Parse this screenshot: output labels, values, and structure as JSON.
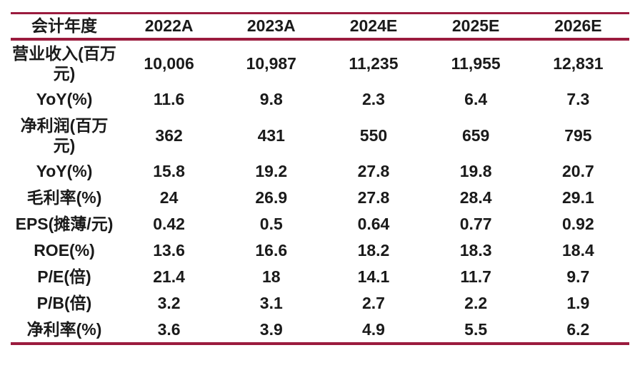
{
  "theme": {
    "accent_color": "#9b1b3e",
    "text_color": "#1a1a1a",
    "background_color": "#ffffff"
  },
  "chart_data": {
    "type": "table",
    "columns": [
      "会计年度",
      "2022A",
      "2023A",
      "2024E",
      "2025E",
      "2026E"
    ],
    "rows": [
      {
        "label": "营业收入(百万元)",
        "values": [
          "10,006",
          "10,987",
          "11,235",
          "11,955",
          "12,831"
        ]
      },
      {
        "label": "YoY(%)",
        "values": [
          "11.6",
          "9.8",
          "2.3",
          "6.4",
          "7.3"
        ]
      },
      {
        "label": "净利润(百万元)",
        "values": [
          "362",
          "431",
          "550",
          "659",
          "795"
        ]
      },
      {
        "label": "YoY(%)",
        "values": [
          "15.8",
          "19.2",
          "27.8",
          "19.8",
          "20.7"
        ]
      },
      {
        "label": "毛利率(%)",
        "values": [
          "24",
          "26.9",
          "27.8",
          "28.4",
          "29.1"
        ]
      },
      {
        "label": "EPS(摊薄/元)",
        "values": [
          "0.42",
          "0.5",
          "0.64",
          "0.77",
          "0.92"
        ]
      },
      {
        "label": "ROE(%)",
        "values": [
          "13.6",
          "16.6",
          "18.2",
          "18.3",
          "18.4"
        ]
      },
      {
        "label": "P/E(倍)",
        "values": [
          "21.4",
          "18",
          "14.1",
          "11.7",
          "9.7"
        ]
      },
      {
        "label": "P/B(倍)",
        "values": [
          "3.2",
          "3.1",
          "2.7",
          "2.2",
          "1.9"
        ]
      },
      {
        "label": "净利率(%)",
        "values": [
          "3.6",
          "3.9",
          "4.9",
          "5.5",
          "6.2"
        ]
      }
    ]
  }
}
